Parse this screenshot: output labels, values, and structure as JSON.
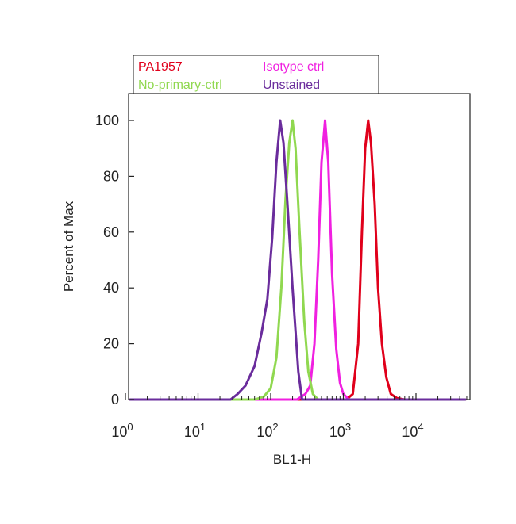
{
  "chart_data": {
    "type": "line",
    "title": "",
    "xlabel": "BL1-H",
    "ylabel": "Percent of Max",
    "x_scale": "log",
    "xlim": [
      1,
      60000
    ],
    "ylim": [
      0,
      110
    ],
    "x_ticks": [
      {
        "value": 1,
        "base": "10",
        "exp": "0"
      },
      {
        "value": 10,
        "base": "10",
        "exp": "1"
      },
      {
        "value": 100,
        "base": "10",
        "exp": "2"
      },
      {
        "value": 1000,
        "base": "10",
        "exp": "3"
      },
      {
        "value": 10000,
        "base": "10",
        "exp": "4"
      }
    ],
    "y_ticks": [
      0,
      20,
      40,
      60,
      80,
      100
    ],
    "grid": false,
    "legend": {
      "placement": "top-left"
    },
    "series": [
      {
        "name": "PA1957",
        "color": "#e0001b",
        "x": [
          1,
          1100,
          1350,
          1600,
          1800,
          2000,
          2200,
          2400,
          2700,
          3000,
          3400,
          3900,
          4500,
          5500,
          7000,
          60000
        ],
        "y": [
          0,
          0,
          2,
          20,
          60,
          90,
          100,
          92,
          70,
          40,
          20,
          8,
          2,
          0.5,
          0,
          0
        ]
      },
      {
        "name": "Isotype ctrl",
        "color": "#f020e0",
        "x": [
          1,
          230,
          300,
          350,
          400,
          450,
          500,
          560,
          620,
          700,
          800,
          900,
          1000,
          1200,
          60000
        ],
        "y": [
          0,
          0,
          2,
          5,
          20,
          50,
          85,
          100,
          85,
          45,
          18,
          6,
          2,
          0,
          0
        ]
      },
      {
        "name": "No-primary-ctrl",
        "color": "#90d850",
        "x": [
          1,
          60,
          80,
          100,
          120,
          140,
          160,
          180,
          200,
          220,
          250,
          290,
          330,
          380,
          450,
          60000
        ],
        "y": [
          0,
          0,
          1,
          4,
          15,
          40,
          72,
          92,
          100,
          90,
          60,
          28,
          10,
          2,
          0,
          0
        ]
      },
      {
        "name": "Unstained",
        "color": "#6a2c9c",
        "x": [
          1,
          28,
          35,
          45,
          60,
          75,
          90,
          105,
          120,
          135,
          150,
          170,
          200,
          240,
          270,
          60000
        ],
        "y": [
          0,
          0,
          2,
          5,
          12,
          24,
          36,
          58,
          85,
          100,
          92,
          70,
          40,
          10,
          0,
          0
        ]
      }
    ]
  }
}
